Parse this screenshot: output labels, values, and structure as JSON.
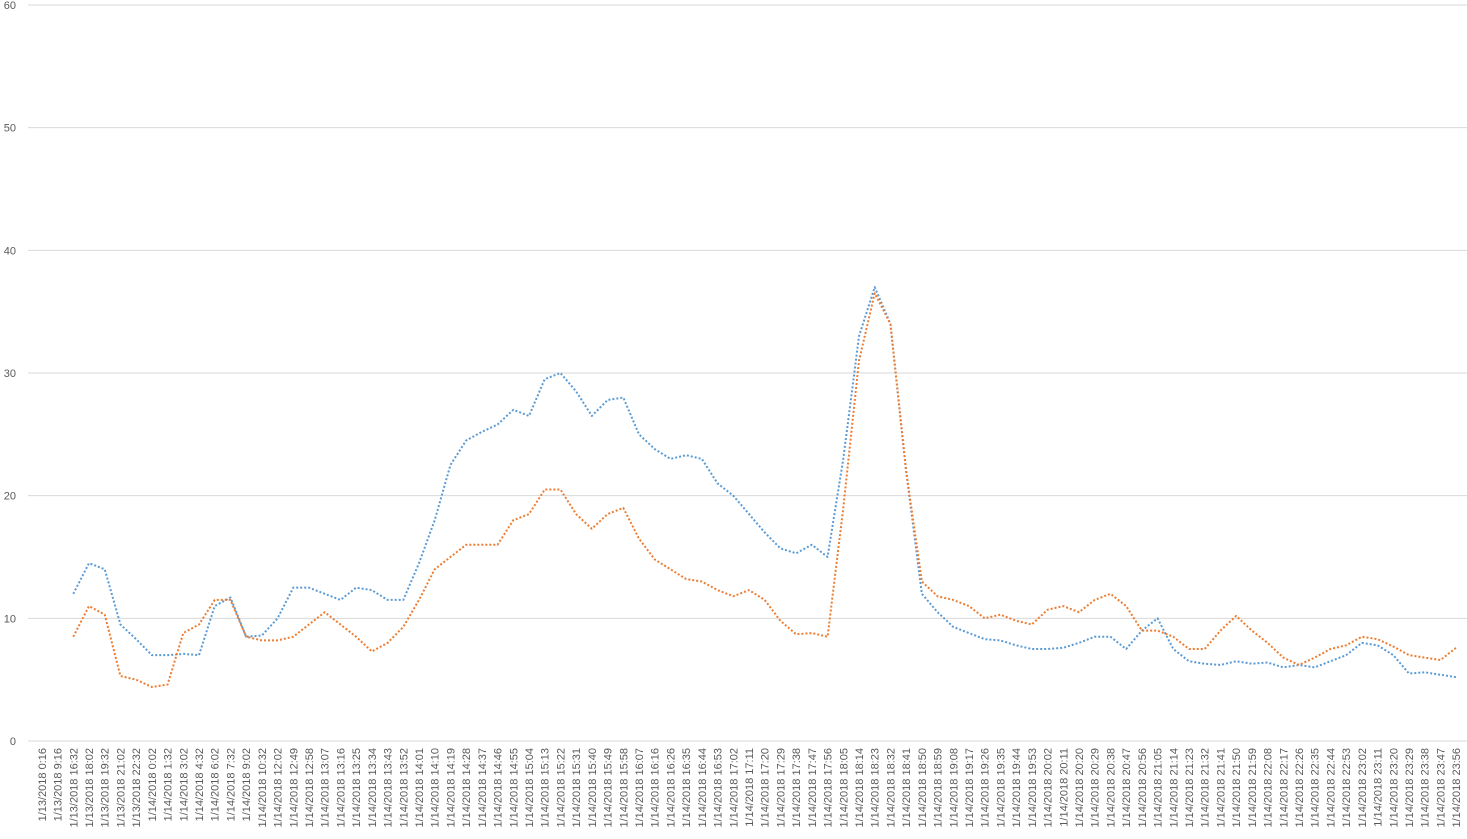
{
  "chart_data": {
    "type": "line",
    "categories": [
      "1/13/2018 0:16",
      "1/13/2018 9:16",
      "1/13/2018 16:32",
      "1/13/2018 18:02",
      "1/13/2018 19:32",
      "1/13/2018 21:02",
      "1/13/2018 22:32",
      "1/14/2018 0:02",
      "1/14/2018 1:32",
      "1/14/2018 3:02",
      "1/14/2018 4:32",
      "1/14/2018 6:02",
      "1/14/2018 7:32",
      "1/14/2018 9:02",
      "1/14/2018 10:32",
      "1/14/2018 12:02",
      "1/14/2018 12:49",
      "1/14/2018 12:58",
      "1/14/2018 13:07",
      "1/14/2018 13:16",
      "1/14/2018 13:25",
      "1/14/2018 13:34",
      "1/14/2018 13:43",
      "1/14/2018 13:52",
      "1/14/2018 14:01",
      "1/14/2018 14:10",
      "1/14/2018 14:19",
      "1/14/2018 14:28",
      "1/14/2018 14:37",
      "1/14/2018 14:46",
      "1/14/2018 14:55",
      "1/14/2018 15:04",
      "1/14/2018 15:13",
      "1/14/2018 15:22",
      "1/14/2018 15:31",
      "1/14/2018 15:40",
      "1/14/2018 15:49",
      "1/14/2018 15:58",
      "1/14/2018 16:07",
      "1/14/2018 16:16",
      "1/14/2018 16:26",
      "1/14/2018 16:35",
      "1/14/2018 16:44",
      "1/14/2018 16:53",
      "1/14/2018 17:02",
      "1/14/2018 17:11",
      "1/14/2018 17:20",
      "1/14/2018 17:29",
      "1/14/2018 17:38",
      "1/14/2018 17:47",
      "1/14/2018 17:56",
      "1/14/2018 18:05",
      "1/14/2018 18:14",
      "1/14/2018 18:23",
      "1/14/2018 18:32",
      "1/14/2018 18:41",
      "1/14/2018 18:50",
      "1/14/2018 18:59",
      "1/14/2018 19:08",
      "1/14/2018 19:17",
      "1/14/2018 19:26",
      "1/14/2018 19:35",
      "1/14/2018 19:44",
      "1/14/2018 19:53",
      "1/14/2018 20:02",
      "1/14/2018 20:11",
      "1/14/2018 20:20",
      "1/14/2018 20:29",
      "1/14/2018 20:38",
      "1/14/2018 20:47",
      "1/14/2018 20:56",
      "1/14/2018 21:05",
      "1/14/2018 21:14",
      "1/14/2018 21:23",
      "1/14/2018 21:32",
      "1/14/2018 21:41",
      "1/14/2018 21:50",
      "1/14/2018 21:59",
      "1/14/2018 22:08",
      "1/14/2018 22:17",
      "1/14/2018 22:26",
      "1/14/2018 22:35",
      "1/14/2018 22:44",
      "1/14/2018 22:53",
      "1/14/2018 23:02",
      "1/14/2018 23:11",
      "1/14/2018 23:20",
      "1/14/2018 23:29",
      "1/14/2018 23:38",
      "1/14/2018 23:47",
      "1/14/2018 23:56"
    ],
    "series": [
      {
        "color": "#5b9bd5",
        "values": [
          null,
          null,
          12,
          14.5,
          14,
          9.5,
          8.3,
          7,
          7,
          7.1,
          7,
          11,
          11.7,
          8.5,
          8.6,
          10,
          12.5,
          12.5,
          12,
          11.5,
          12.5,
          12.3,
          11.5,
          11.5,
          14.5,
          18,
          22.5,
          24.5,
          25.2,
          25.8,
          27,
          26.5,
          29.5,
          30,
          28.5,
          26.5,
          27.8,
          28,
          25,
          23.8,
          23,
          23.3,
          23,
          21,
          20,
          18.5,
          17,
          15.7,
          15.3,
          16,
          15,
          23,
          33,
          37,
          34,
          22,
          12,
          10.5,
          9.3,
          8.8,
          8.3,
          8.2,
          7.8,
          7.5,
          7.5,
          7.6,
          8,
          8.5,
          8.5,
          7.5,
          9,
          10,
          7.5,
          6.5,
          6.3,
          6.2,
          6.5,
          6.3,
          6.4,
          6,
          6.2,
          6,
          6.5,
          7,
          8,
          7.8,
          7,
          5.5,
          5.6,
          5.4,
          5.2
        ]
      },
      {
        "color": "#ed7d31",
        "values": [
          null,
          null,
          8.5,
          11,
          10.3,
          5.3,
          5,
          4.4,
          4.6,
          8.8,
          9.5,
          11.5,
          11.5,
          8.5,
          8.2,
          8.2,
          8.5,
          9.5,
          10.5,
          9.5,
          8.5,
          7.3,
          8,
          9.3,
          11.5,
          14,
          15,
          16,
          16,
          16,
          18,
          18.5,
          20.5,
          20.5,
          18.5,
          17.3,
          18.5,
          19,
          16.5,
          14.8,
          14,
          13.2,
          13,
          12.3,
          11.8,
          12.3,
          11.5,
          9.8,
          8.7,
          8.8,
          8.5,
          19,
          31,
          36.5,
          34,
          22,
          13,
          11.8,
          11.5,
          11,
          10,
          10.3,
          9.8,
          9.5,
          10.7,
          11,
          10.5,
          11.5,
          12,
          11,
          9,
          9,
          8.5,
          7.5,
          7.5,
          9,
          10.2,
          9,
          8,
          6.8,
          6.2,
          6.8,
          7.5,
          7.8,
          8.5,
          8.3,
          7.7,
          7,
          6.8,
          6.6,
          7.6
        ]
      }
    ],
    "ylim": [
      0,
      60
    ],
    "yticks": [
      0,
      10,
      20,
      30,
      40,
      50,
      60
    ],
    "grid": true,
    "line_style": "dotted"
  }
}
